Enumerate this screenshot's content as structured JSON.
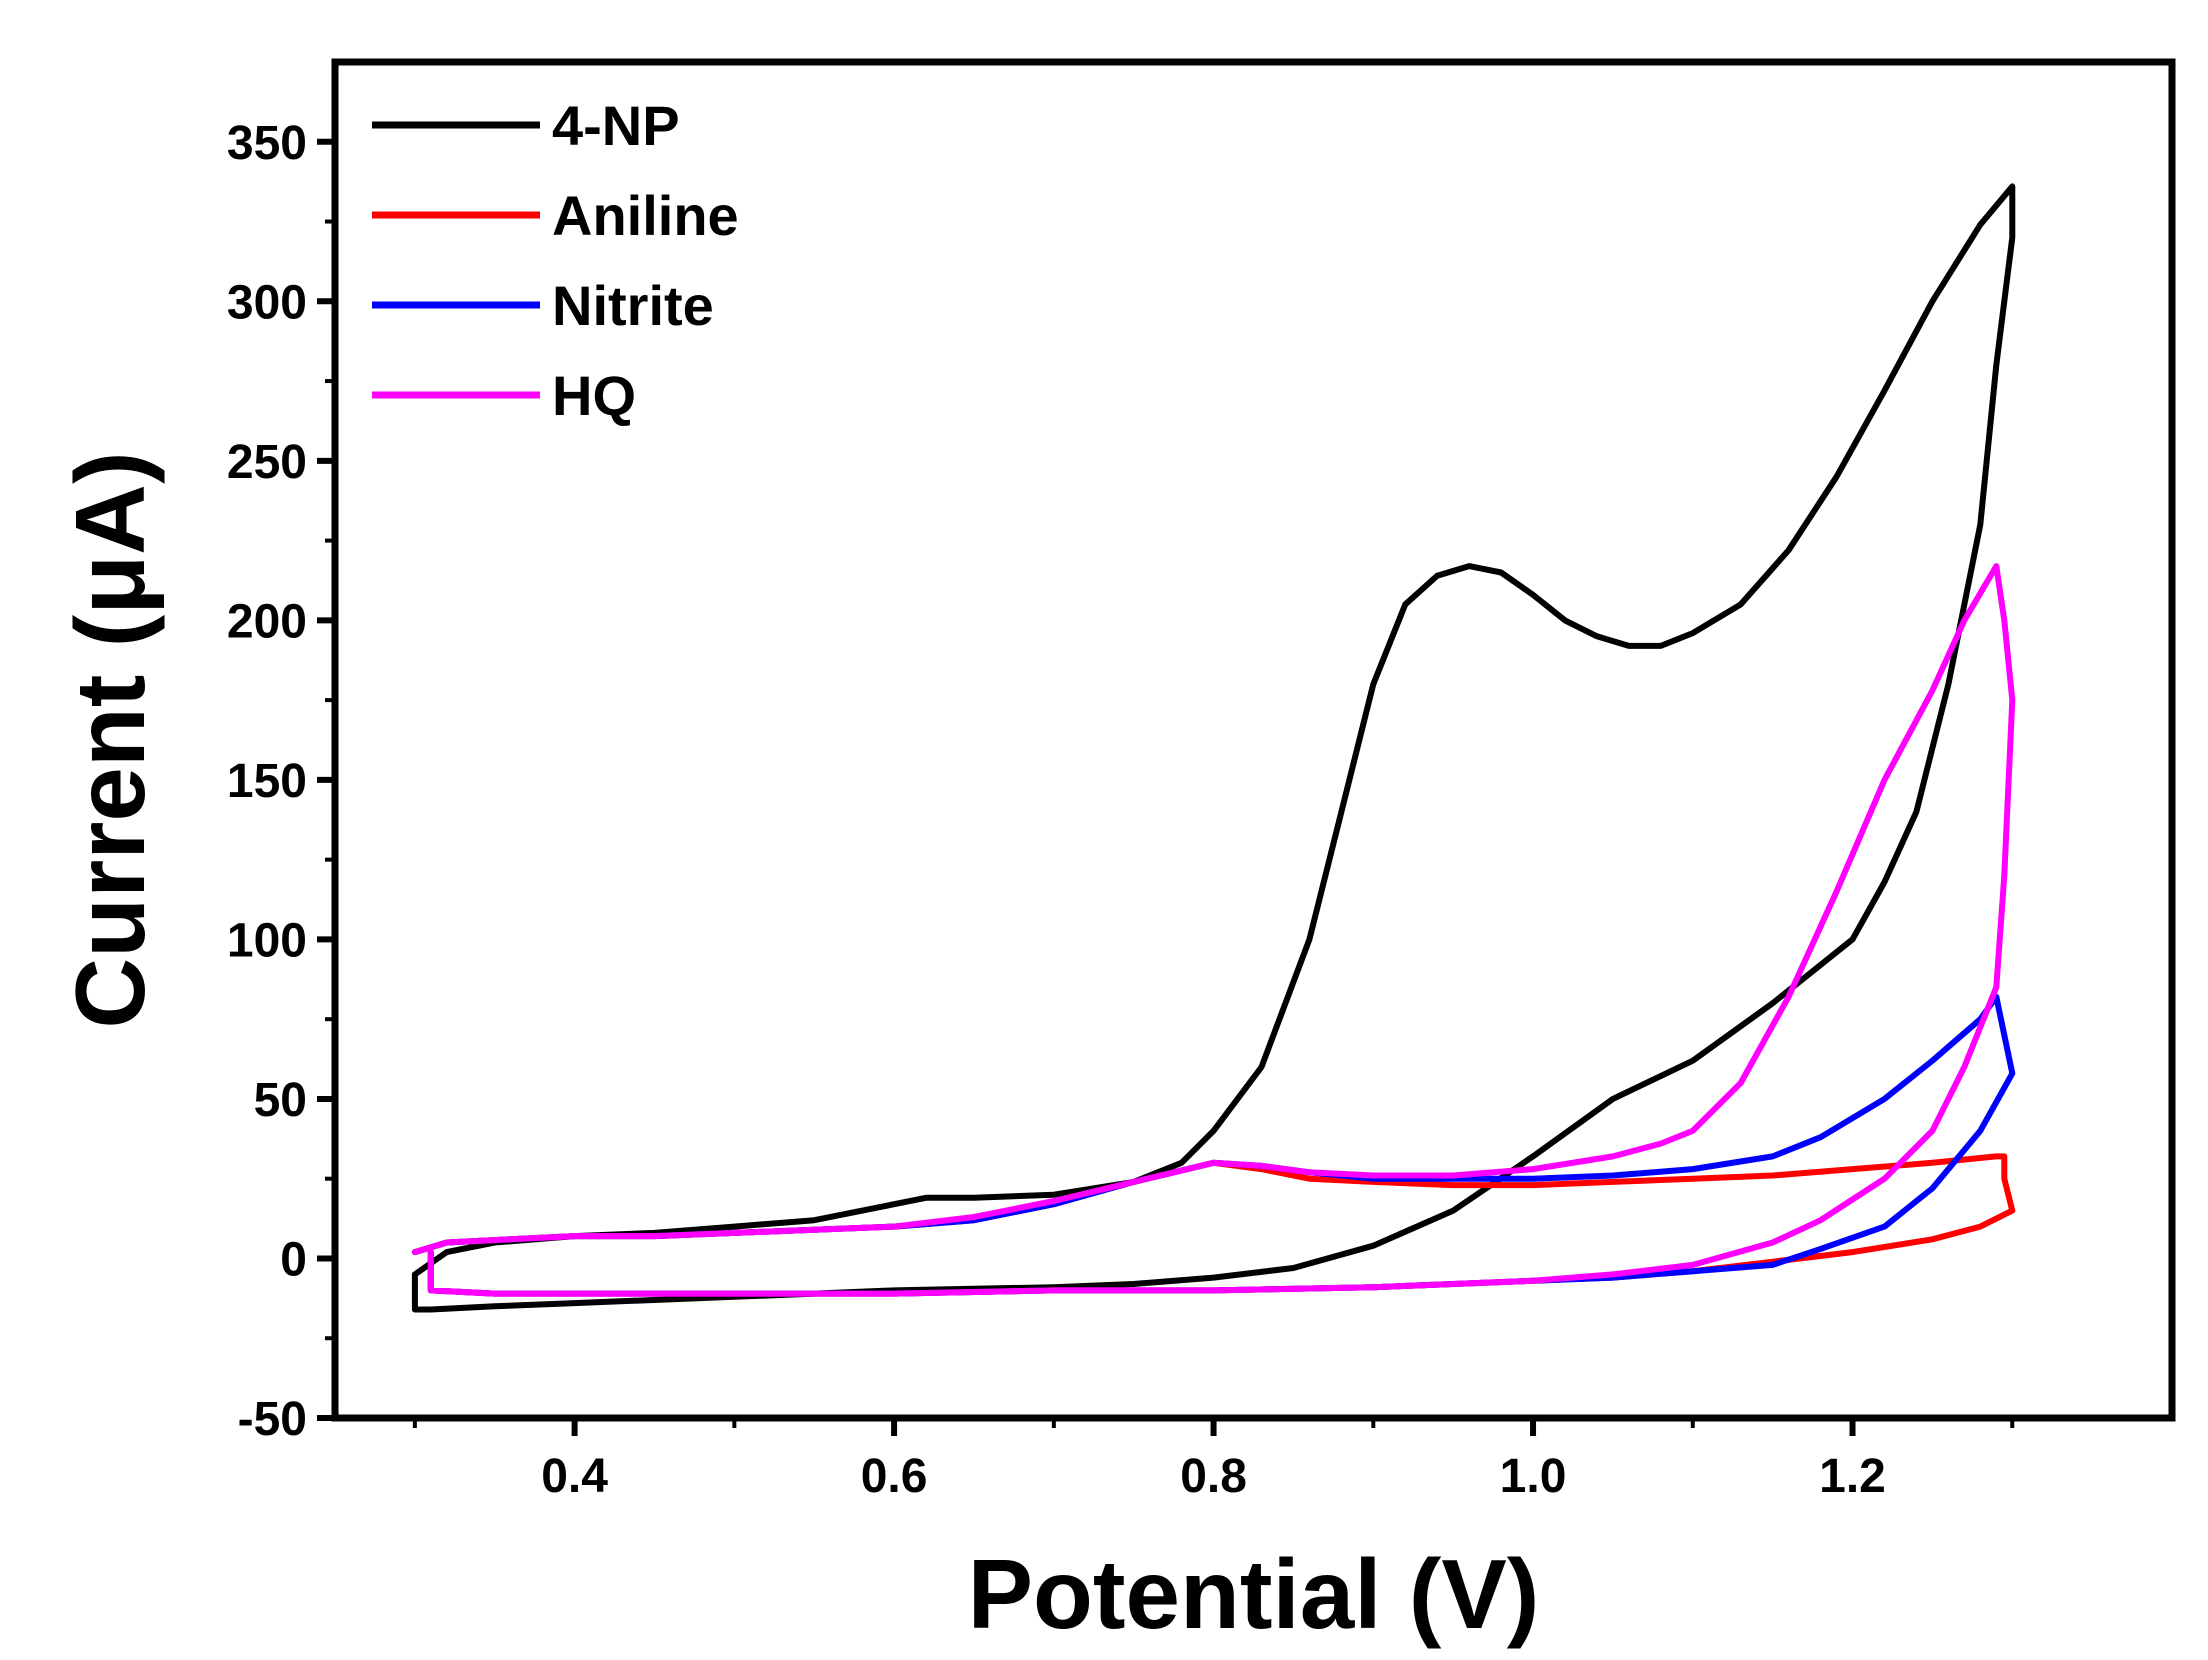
{
  "chart_data": {
    "type": "line",
    "title": "",
    "xlabel": "Potential (V)",
    "ylabel": "Current (μA)",
    "xlim": [
      0.25,
      1.4
    ],
    "ylim": [
      -50,
      375
    ],
    "xticks": [
      0.4,
      0.6,
      0.8,
      1.0,
      1.2
    ],
    "xtick_labels": [
      "0.4",
      "0.6",
      "0.8",
      "1.0",
      "1.2"
    ],
    "yticks": [
      -50,
      0,
      50,
      100,
      150,
      200,
      250,
      300,
      350
    ],
    "ytick_labels": [
      "-50",
      "0",
      "50",
      "100",
      "150",
      "200",
      "250",
      "300",
      "350"
    ],
    "grid": false,
    "legend_position": "top-left",
    "series": [
      {
        "name": "4-NP",
        "color": "#000000",
        "points": [
          [
            0.3,
            -5
          ],
          [
            0.32,
            2
          ],
          [
            0.35,
            5
          ],
          [
            0.4,
            7
          ],
          [
            0.45,
            8
          ],
          [
            0.5,
            10
          ],
          [
            0.55,
            12
          ],
          [
            0.6,
            17
          ],
          [
            0.62,
            19
          ],
          [
            0.65,
            19
          ],
          [
            0.7,
            20
          ],
          [
            0.75,
            24
          ],
          [
            0.78,
            30
          ],
          [
            0.8,
            40
          ],
          [
            0.83,
            60
          ],
          [
            0.86,
            100
          ],
          [
            0.88,
            140
          ],
          [
            0.9,
            180
          ],
          [
            0.92,
            205
          ],
          [
            0.94,
            214
          ],
          [
            0.96,
            217
          ],
          [
            0.98,
            215
          ],
          [
            1.0,
            208
          ],
          [
            1.02,
            200
          ],
          [
            1.04,
            195
          ],
          [
            1.06,
            192
          ],
          [
            1.08,
            192
          ],
          [
            1.1,
            196
          ],
          [
            1.13,
            205
          ],
          [
            1.16,
            222
          ],
          [
            1.19,
            245
          ],
          [
            1.22,
            272
          ],
          [
            1.25,
            300
          ],
          [
            1.28,
            324
          ],
          [
            1.3,
            336
          ],
          [
            1.3,
            320
          ],
          [
            1.29,
            280
          ],
          [
            1.28,
            230
          ],
          [
            1.26,
            180
          ],
          [
            1.24,
            140
          ],
          [
            1.22,
            118
          ],
          [
            1.2,
            100
          ],
          [
            1.15,
            80
          ],
          [
            1.1,
            62
          ],
          [
            1.05,
            50
          ],
          [
            1.0,
            32
          ],
          [
            0.95,
            15
          ],
          [
            0.9,
            4
          ],
          [
            0.85,
            -3
          ],
          [
            0.8,
            -6
          ],
          [
            0.75,
            -8
          ],
          [
            0.7,
            -9
          ],
          [
            0.6,
            -10
          ],
          [
            0.5,
            -12
          ],
          [
            0.4,
            -14
          ],
          [
            0.35,
            -15
          ],
          [
            0.31,
            -16
          ],
          [
            0.3,
            -16
          ],
          [
            0.3,
            -5
          ]
        ]
      },
      {
        "name": "Aniline",
        "color": "#ff0000",
        "points": [
          [
            0.3,
            2
          ],
          [
            0.32,
            5
          ],
          [
            0.36,
            6
          ],
          [
            0.4,
            7
          ],
          [
            0.45,
            7
          ],
          [
            0.5,
            8
          ],
          [
            0.55,
            9
          ],
          [
            0.6,
            10
          ],
          [
            0.65,
            12
          ],
          [
            0.7,
            17
          ],
          [
            0.75,
            24
          ],
          [
            0.8,
            30
          ],
          [
            0.83,
            28
          ],
          [
            0.86,
            25
          ],
          [
            0.9,
            24
          ],
          [
            0.95,
            23
          ],
          [
            1.0,
            23
          ],
          [
            1.05,
            24
          ],
          [
            1.1,
            25
          ],
          [
            1.15,
            26
          ],
          [
            1.2,
            28
          ],
          [
            1.25,
            30
          ],
          [
            1.29,
            32
          ],
          [
            1.295,
            32
          ],
          [
            1.295,
            25
          ],
          [
            1.3,
            15
          ],
          [
            1.28,
            10
          ],
          [
            1.25,
            6
          ],
          [
            1.2,
            2
          ],
          [
            1.15,
            -1
          ],
          [
            1.1,
            -4
          ],
          [
            1.05,
            -6
          ],
          [
            1.0,
            -7
          ],
          [
            0.9,
            -9
          ],
          [
            0.8,
            -10
          ],
          [
            0.7,
            -10
          ],
          [
            0.6,
            -11
          ],
          [
            0.5,
            -11
          ],
          [
            0.4,
            -11
          ],
          [
            0.35,
            -11
          ],
          [
            0.31,
            -10
          ],
          [
            0.31,
            2
          ]
        ]
      },
      {
        "name": "Nitrite",
        "color": "#0000ff",
        "points": [
          [
            0.3,
            2
          ],
          [
            0.32,
            5
          ],
          [
            0.36,
            6
          ],
          [
            0.4,
            7
          ],
          [
            0.45,
            7
          ],
          [
            0.5,
            8
          ],
          [
            0.55,
            9
          ],
          [
            0.6,
            10
          ],
          [
            0.65,
            12
          ],
          [
            0.7,
            17
          ],
          [
            0.75,
            24
          ],
          [
            0.8,
            30
          ],
          [
            0.83,
            29
          ],
          [
            0.86,
            27
          ],
          [
            0.9,
            25
          ],
          [
            0.95,
            25
          ],
          [
            1.0,
            25
          ],
          [
            1.05,
            26
          ],
          [
            1.1,
            28
          ],
          [
            1.15,
            32
          ],
          [
            1.18,
            38
          ],
          [
            1.22,
            50
          ],
          [
            1.25,
            62
          ],
          [
            1.28,
            75
          ],
          [
            1.29,
            82
          ],
          [
            1.295,
            70
          ],
          [
            1.3,
            58
          ],
          [
            1.28,
            40
          ],
          [
            1.25,
            22
          ],
          [
            1.22,
            10
          ],
          [
            1.18,
            3
          ],
          [
            1.15,
            -2
          ],
          [
            1.1,
            -4
          ],
          [
            1.05,
            -6
          ],
          [
            1.0,
            -7
          ],
          [
            0.9,
            -9
          ],
          [
            0.8,
            -10
          ],
          [
            0.7,
            -10
          ],
          [
            0.6,
            -11
          ],
          [
            0.5,
            -11
          ],
          [
            0.4,
            -11
          ],
          [
            0.35,
            -11
          ],
          [
            0.31,
            -10
          ],
          [
            0.31,
            2
          ]
        ]
      },
      {
        "name": "HQ",
        "color": "#ff00ff",
        "points": [
          [
            0.3,
            2
          ],
          [
            0.32,
            5
          ],
          [
            0.36,
            6
          ],
          [
            0.4,
            7
          ],
          [
            0.45,
            7
          ],
          [
            0.5,
            8
          ],
          [
            0.55,
            9
          ],
          [
            0.6,
            10
          ],
          [
            0.65,
            13
          ],
          [
            0.7,
            18
          ],
          [
            0.75,
            24
          ],
          [
            0.8,
            30
          ],
          [
            0.83,
            29
          ],
          [
            0.86,
            27
          ],
          [
            0.9,
            26
          ],
          [
            0.95,
            26
          ],
          [
            1.0,
            28
          ],
          [
            1.05,
            32
          ],
          [
            1.08,
            36
          ],
          [
            1.1,
            40
          ],
          [
            1.13,
            55
          ],
          [
            1.16,
            82
          ],
          [
            1.19,
            115
          ],
          [
            1.22,
            150
          ],
          [
            1.25,
            178
          ],
          [
            1.27,
            200
          ],
          [
            1.29,
            217
          ],
          [
            1.295,
            200
          ],
          [
            1.3,
            175
          ],
          [
            1.295,
            120
          ],
          [
            1.29,
            85
          ],
          [
            1.27,
            60
          ],
          [
            1.25,
            40
          ],
          [
            1.22,
            25
          ],
          [
            1.18,
            12
          ],
          [
            1.15,
            5
          ],
          [
            1.1,
            -2
          ],
          [
            1.05,
            -5
          ],
          [
            1.0,
            -7
          ],
          [
            0.9,
            -9
          ],
          [
            0.8,
            -10
          ],
          [
            0.7,
            -10
          ],
          [
            0.6,
            -11
          ],
          [
            0.5,
            -11
          ],
          [
            0.4,
            -11
          ],
          [
            0.35,
            -11
          ],
          [
            0.31,
            -10
          ],
          [
            0.31,
            2
          ]
        ]
      }
    ]
  }
}
